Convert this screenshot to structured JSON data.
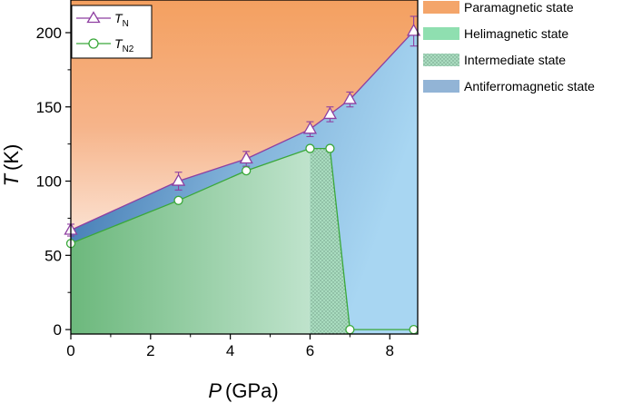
{
  "chart_data": {
    "type": "line",
    "xlabel": {
      "symbol": "P",
      "unit": "(GPa)"
    },
    "ylabel": {
      "symbol": "T",
      "unit": "(K)"
    },
    "xlim": [
      0,
      8.7
    ],
    "ylim": [
      -3,
      222
    ],
    "x_ticks": [
      "0",
      "2",
      "4",
      "6",
      "8"
    ],
    "y_ticks": [
      "0",
      "50",
      "100",
      "150",
      "200"
    ],
    "x_tick_values": [
      0,
      2,
      4,
      6,
      8
    ],
    "y_tick_values": [
      0,
      50,
      100,
      150,
      200
    ],
    "series": [
      {
        "name": "T_N",
        "label_main": "T",
        "label_sub": "N",
        "marker": "triangle",
        "color": "#8e3fa1",
        "x": [
          0,
          2.7,
          4.4,
          6.0,
          6.5,
          7.0,
          8.6
        ],
        "y": [
          67,
          100,
          115,
          135,
          145,
          155,
          201
        ],
        "err": [
          4,
          6,
          5,
          5,
          5,
          5,
          10
        ]
      },
      {
        "name": "T_N2",
        "label_main": "T",
        "label_sub": "N2",
        "marker": "circle",
        "color": "#3aa83a",
        "x": [
          0,
          2.7,
          4.4,
          6.0,
          6.5,
          7.0,
          8.6
        ],
        "y": [
          58,
          87,
          107,
          122,
          122,
          0,
          0
        ]
      }
    ],
    "regions": [
      {
        "name": "Paramagnetic state",
        "color": "#f4a56a"
      },
      {
        "name": "Helimagnetic state",
        "color": "#8fdfb0"
      },
      {
        "name": "Intermediate state",
        "color": "#9fdcb9"
      },
      {
        "name": "Antiferromagnetic state",
        "color": "#92b4d6"
      }
    ]
  }
}
